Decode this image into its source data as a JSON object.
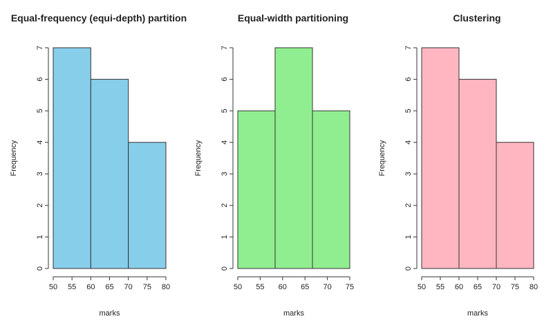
{
  "chart_data": [
    {
      "type": "bar",
      "title": "Equal-frequency (equi-depth) partition",
      "xlabel": "marks",
      "ylabel": "Frequency",
      "bins": [
        [
          50,
          60
        ],
        [
          60,
          70
        ],
        [
          70,
          80
        ]
      ],
      "values": [
        7,
        6,
        4
      ],
      "xlim": [
        50,
        80
      ],
      "xticks": [
        50,
        55,
        60,
        65,
        70,
        75,
        80
      ],
      "ylim": [
        0,
        7
      ],
      "yticks": [
        0,
        1,
        2,
        3,
        4,
        5,
        6,
        7
      ],
      "color": "#87CEEB",
      "grid": false
    },
    {
      "type": "bar",
      "title": "Equal-width partitioning",
      "xlabel": "marks",
      "ylabel": "Frequency",
      "bins": [
        [
          50,
          58.33
        ],
        [
          58.33,
          66.67
        ],
        [
          66.67,
          75
        ]
      ],
      "values": [
        5,
        7,
        5
      ],
      "xlim": [
        50,
        75
      ],
      "xticks": [
        50,
        55,
        60,
        65,
        70,
        75
      ],
      "ylim": [
        0,
        7
      ],
      "yticks": [
        0,
        1,
        2,
        3,
        4,
        5,
        6,
        7
      ],
      "color": "#90EE90",
      "grid": false
    },
    {
      "type": "bar",
      "title": "Clustering",
      "xlabel": "marks",
      "ylabel": "Frequency",
      "bins": [
        [
          50,
          60
        ],
        [
          60,
          70
        ],
        [
          70,
          80
        ]
      ],
      "values": [
        7,
        6,
        4
      ],
      "xlim": [
        50,
        80
      ],
      "xticks": [
        50,
        55,
        60,
        65,
        70,
        75,
        80
      ],
      "ylim": [
        0,
        7
      ],
      "yticks": [
        0,
        1,
        2,
        3,
        4,
        5,
        6,
        7
      ],
      "color": "#FFB6C1",
      "grid": false
    }
  ]
}
